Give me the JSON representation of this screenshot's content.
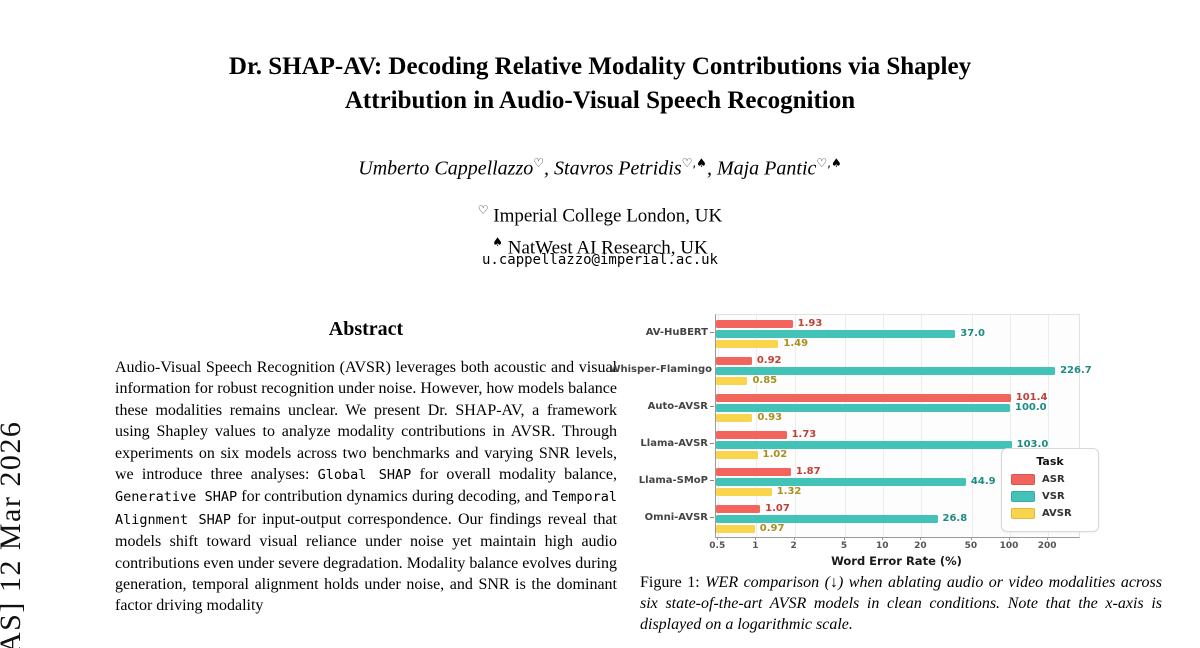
{
  "sidebar": {
    "text": "AS] 12 Mar 2026"
  },
  "header": {
    "title": "Dr. SHAP-AV: Decoding Relative Modality Contributions via Shapley Attribution in Audio-Visual Speech Recognition",
    "title_lines": [
      "Dr. SHAP-AV: Decoding Relative Modality Contributions via Shapley",
      "Attribution in Audio-Visual Speech Recognition"
    ],
    "authors": [
      {
        "name": "Umberto Cappellazzo",
        "sup": "♡"
      },
      {
        "name": "Stavros Petridis",
        "sup": "♡,♠"
      },
      {
        "name": "Maja Pantic",
        "sup": "♡,♠"
      }
    ],
    "affiliations": [
      {
        "symbol": "♡",
        "text": "Imperial College London, UK"
      },
      {
        "symbol": "♠",
        "text": "NatWest AI Research, UK"
      }
    ],
    "email": "u.cappellazzo@imperial.ac.uk"
  },
  "abstract": {
    "heading": "Abstract",
    "segments": [
      {
        "mono": false,
        "text": "Audio-Visual Speech Recognition (AVSR) leverages both acoustic and visual information for robust recognition under noise. However, how models balance these modalities remains unclear. We present Dr. SHAP-AV, a framework using Shapley values to analyze modality contributions in AVSR. Through experiments on six models across two benchmarks and varying SNR levels, we introduce three analyses: "
      },
      {
        "mono": true,
        "text": "Global SHAP"
      },
      {
        "mono": false,
        "text": " for overall modality balance, "
      },
      {
        "mono": true,
        "text": "Generative SHAP"
      },
      {
        "mono": false,
        "text": " for contribution dynamics during decoding, and "
      },
      {
        "mono": true,
        "text": "Temporal Alignment SHAP"
      },
      {
        "mono": false,
        "text": " for input-output correspondence. Our findings reveal that models shift toward visual reliance under noise yet maintain high audio contributions even under severe degradation. Modality balance evolves during generation, temporal alignment holds under noise, and SNR is the dominant factor driving modality"
      }
    ]
  },
  "figure": {
    "caption_label": "Figure 1:",
    "caption_text": "WER comparison (↓) when ablating audio or video modalities across six state-of-the-art AVSR models in clean conditions. Note that the x-axis is displayed on a logarithmic scale."
  },
  "chart_data": {
    "type": "bar",
    "orientation": "horizontal",
    "x_scale": "log",
    "categories": [
      "AV-HuBERT",
      "Whisper-Flamingo",
      "Auto-AVSR",
      "Llama-AVSR",
      "Llama-SMoP",
      "Omni-AVSR"
    ],
    "series": [
      {
        "name": "ASR",
        "color": "#f2655c",
        "label_color": "#bf4038",
        "values": [
          1.93,
          0.92,
          101.4,
          1.73,
          1.87,
          1.07
        ],
        "labels": [
          "1.93",
          "0.92",
          "101.4",
          "1.73",
          "1.87",
          "1.07"
        ]
      },
      {
        "name": "VSR",
        "color": "#43c2b7",
        "label_color": "#1d8c85",
        "values": [
          37.0,
          226.7,
          100.0,
          103.0,
          44.9,
          26.8
        ],
        "labels": [
          "37.0",
          "226.7",
          "100.0",
          "103.0",
          "44.9",
          "26.8"
        ]
      },
      {
        "name": "AVSR",
        "color": "#f8d54d",
        "label_color": "#a8901f",
        "values": [
          1.49,
          0.85,
          0.93,
          1.02,
          1.32,
          0.97
        ],
        "labels": [
          "1.49",
          "0.85",
          "0.93",
          "1.02",
          "1.32",
          "0.97"
        ]
      }
    ],
    "xlabel": "Word Error Rate (%)",
    "xticks": [
      0.5,
      1,
      2,
      5,
      10,
      20,
      50,
      100,
      200
    ],
    "xtick_labels": [
      "0.5",
      "1",
      "2",
      "5",
      "10",
      "20",
      "50",
      "100",
      "200"
    ],
    "xlim": [
      0.48,
      350
    ],
    "grid": true,
    "legend": {
      "title": "Task",
      "position": "inside-right"
    }
  }
}
